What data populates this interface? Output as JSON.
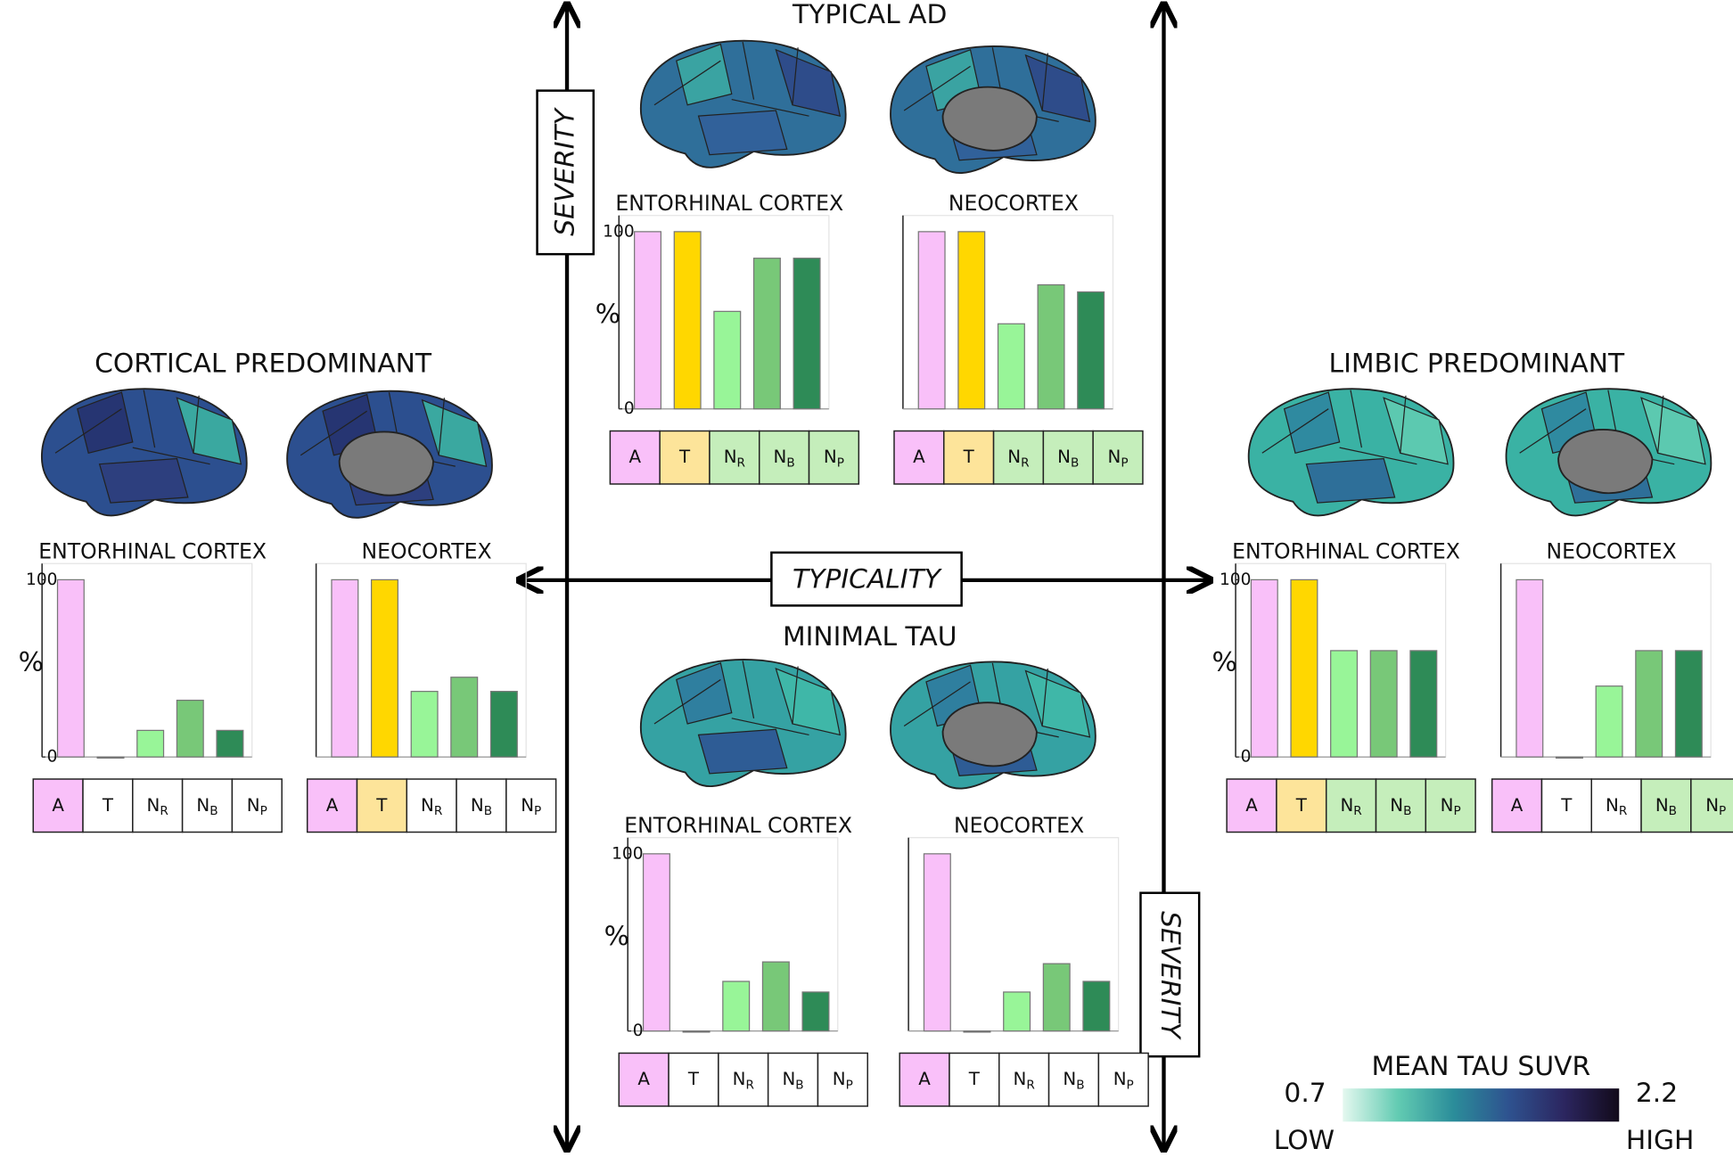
{
  "groups": [
    {
      "title": "TYPICAL AD"
    },
    {
      "title": "CORTICAL PREDOMINANT"
    },
    {
      "title": "LIMBIC PREDOMINANT"
    },
    {
      "title": "MINIMAL TAU"
    }
  ],
  "axes": {
    "severity_top": "SEVERITY",
    "severity_bottom": "SEVERITY",
    "typicality": "TYPICALITY"
  },
  "colorbar": {
    "title": "MEAN TAU SUVR",
    "min": 0.7,
    "max": 2.2,
    "low_label": "LOW",
    "high_label": "HIGH",
    "colors": [
      "#e4f8ef",
      "#62cbb2",
      "#2b8d9a",
      "#2e528f",
      "#2c2660",
      "#120a1a"
    ]
  },
  "chart_data": [
    {
      "type": "bar",
      "title": "ENTORHINAL CORTEX",
      "ylabel": "%",
      "categories": [
        "A",
        "T",
        "NR",
        "NB",
        "NP"
      ],
      "values": [
        100,
        100,
        55,
        85,
        85
      ],
      "colors": [
        "#f9c0f9",
        "#ffd700",
        "#98f598",
        "#78c878",
        "#2e8b57"
      ],
      "cell_colors": [
        "#f9c0f9",
        "#fde49a",
        "#c5eebb",
        "#c5eebb",
        "#c5eebb"
      ],
      "ylim": [
        0,
        106
      ],
      "yticks": [
        0,
        100
      ]
    },
    {
      "type": "bar",
      "title": "NEOCORTEX",
      "ylabel": "",
      "categories": [
        "A",
        "T",
        "NR",
        "NB",
        "NP"
      ],
      "values": [
        100,
        100,
        48,
        70,
        66
      ],
      "colors": [
        "#f9c0f9",
        "#ffd700",
        "#98f598",
        "#78c878",
        "#2e8b57"
      ],
      "cell_colors": [
        "#f9c0f9",
        "#fde49a",
        "#c5eebb",
        "#c5eebb",
        "#c5eebb"
      ],
      "ylim": [
        0,
        106
      ],
      "yticks": []
    },
    {
      "type": "bar",
      "title": "ENTORHINAL CORTEX",
      "ylabel": "%",
      "categories": [
        "A",
        "T",
        "NR",
        "NB",
        "NP"
      ],
      "values": [
        100,
        0,
        15,
        32,
        15
      ],
      "colors": [
        "#f9c0f9",
        "#ffd700",
        "#98f598",
        "#78c878",
        "#2e8b57"
      ],
      "cell_colors": [
        "#f9c0f9",
        "#ffffff",
        "#ffffff",
        "#ffffff",
        "#ffffff"
      ],
      "ylim": [
        0,
        106
      ],
      "yticks": [
        0,
        100
      ]
    },
    {
      "type": "bar",
      "title": "NEOCORTEX",
      "ylabel": "",
      "categories": [
        "A",
        "T",
        "NR",
        "NB",
        "NP"
      ],
      "values": [
        100,
        100,
        37,
        45,
        37
      ],
      "colors": [
        "#f9c0f9",
        "#ffd700",
        "#98f598",
        "#78c878",
        "#2e8b57"
      ],
      "cell_colors": [
        "#f9c0f9",
        "#fde49a",
        "#ffffff",
        "#ffffff",
        "#ffffff"
      ],
      "ylim": [
        0,
        106
      ],
      "yticks": []
    },
    {
      "type": "bar",
      "title": "ENTORHINAL CORTEX",
      "ylabel": "%",
      "categories": [
        "A",
        "T",
        "NR",
        "NB",
        "NP"
      ],
      "values": [
        100,
        100,
        60,
        60,
        60
      ],
      "colors": [
        "#f9c0f9",
        "#ffd700",
        "#98f598",
        "#78c878",
        "#2e8b57"
      ],
      "cell_colors": [
        "#f9c0f9",
        "#fde49a",
        "#c5eebb",
        "#c5eebb",
        "#c5eebb"
      ],
      "ylim": [
        0,
        106
      ],
      "yticks": [
        0,
        100
      ]
    },
    {
      "type": "bar",
      "title": "NEOCORTEX",
      "ylabel": "",
      "categories": [
        "A",
        "T",
        "NR",
        "NB",
        "NP"
      ],
      "values": [
        100,
        0,
        40,
        60,
        60
      ],
      "colors": [
        "#f9c0f9",
        "#ffd700",
        "#98f598",
        "#78c878",
        "#2e8b57"
      ],
      "cell_colors": [
        "#f9c0f9",
        "#ffffff",
        "#ffffff",
        "#c5eebb",
        "#c5eebb"
      ],
      "ylim": [
        0,
        106
      ],
      "yticks": []
    },
    {
      "type": "bar",
      "title": "ENTORHINAL CORTEX",
      "ylabel": "%",
      "categories": [
        "A",
        "T",
        "NR",
        "NB",
        "NP"
      ],
      "values": [
        100,
        0,
        28,
        39,
        22
      ],
      "colors": [
        "#f9c0f9",
        "#ffd700",
        "#98f598",
        "#78c878",
        "#2e8b57"
      ],
      "cell_colors": [
        "#f9c0f9",
        "#ffffff",
        "#ffffff",
        "#ffffff",
        "#ffffff"
      ],
      "ylim": [
        0,
        106
      ],
      "yticks": [
        0,
        100
      ]
    },
    {
      "type": "bar",
      "title": "NEOCORTEX",
      "ylabel": "",
      "categories": [
        "A",
        "T",
        "NR",
        "NB",
        "NP"
      ],
      "values": [
        100,
        0,
        22,
        38,
        28
      ],
      "colors": [
        "#f9c0f9",
        "#ffd700",
        "#98f598",
        "#78c878",
        "#2e8b57"
      ],
      "cell_colors": [
        "#f9c0f9",
        "#ffffff",
        "#ffffff",
        "#ffffff",
        "#ffffff"
      ],
      "ylim": [
        0,
        106
      ],
      "yticks": []
    }
  ]
}
